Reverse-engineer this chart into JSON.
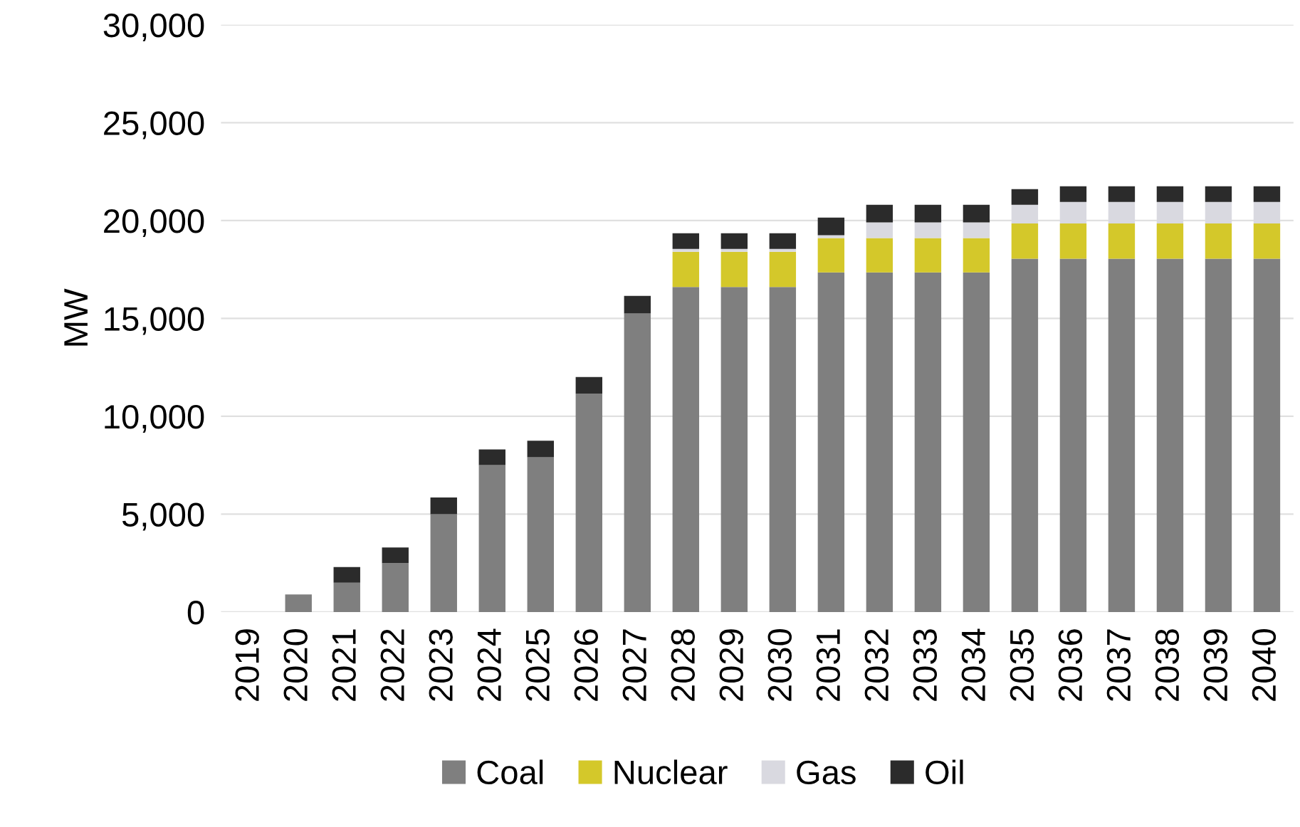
{
  "chart_data": {
    "type": "bar",
    "stacked": true,
    "ylabel": "MW",
    "categories": [
      "2019",
      "2020",
      "2021",
      "2022",
      "2023",
      "2024",
      "2025",
      "2026",
      "2027",
      "2028",
      "2029",
      "2030",
      "2031",
      "2032",
      "2033",
      "2034",
      "2035",
      "2036",
      "2037",
      "2038",
      "2039",
      "2040"
    ],
    "series": [
      {
        "name": "Coal",
        "color": "#7f7f7f",
        "values": [
          0,
          900,
          1500,
          2500,
          5000,
          7500,
          7900,
          11150,
          15250,
          16600,
          16600,
          16600,
          17350,
          17350,
          17350,
          17350,
          18050,
          18050,
          18050,
          18050,
          18050,
          18050
        ]
      },
      {
        "name": "Nuclear",
        "color": "#d4c82a",
        "values": [
          0,
          0,
          0,
          0,
          0,
          0,
          0,
          0,
          0,
          1800,
          1800,
          1800,
          1750,
          1750,
          1750,
          1750,
          1800,
          1800,
          1800,
          1800,
          1800,
          1800
        ]
      },
      {
        "name": "Gas",
        "color": "#d9d9e0",
        "values": [
          0,
          0,
          0,
          0,
          0,
          0,
          0,
          0,
          0,
          150,
          150,
          150,
          150,
          800,
          800,
          800,
          950,
          1100,
          1100,
          1100,
          1100,
          1100
        ]
      },
      {
        "name": "Oil",
        "color": "#2b2b2b",
        "values": [
          0,
          0,
          800,
          800,
          850,
          800,
          850,
          850,
          900,
          800,
          800,
          800,
          900,
          900,
          900,
          900,
          800,
          800,
          800,
          800,
          800,
          800
        ]
      }
    ],
    "ylim": [
      0,
      30000
    ],
    "yticks": [
      {
        "value": 0,
        "label": "0"
      },
      {
        "value": 5000,
        "label": "5,000"
      },
      {
        "value": 10000,
        "label": "10,000"
      },
      {
        "value": 15000,
        "label": "15,000"
      },
      {
        "value": 20000,
        "label": "20,000"
      },
      {
        "value": 25000,
        "label": "25,000"
      },
      {
        "value": 30000,
        "label": "30,000"
      }
    ],
    "grid": "y",
    "legend": "bottom"
  }
}
